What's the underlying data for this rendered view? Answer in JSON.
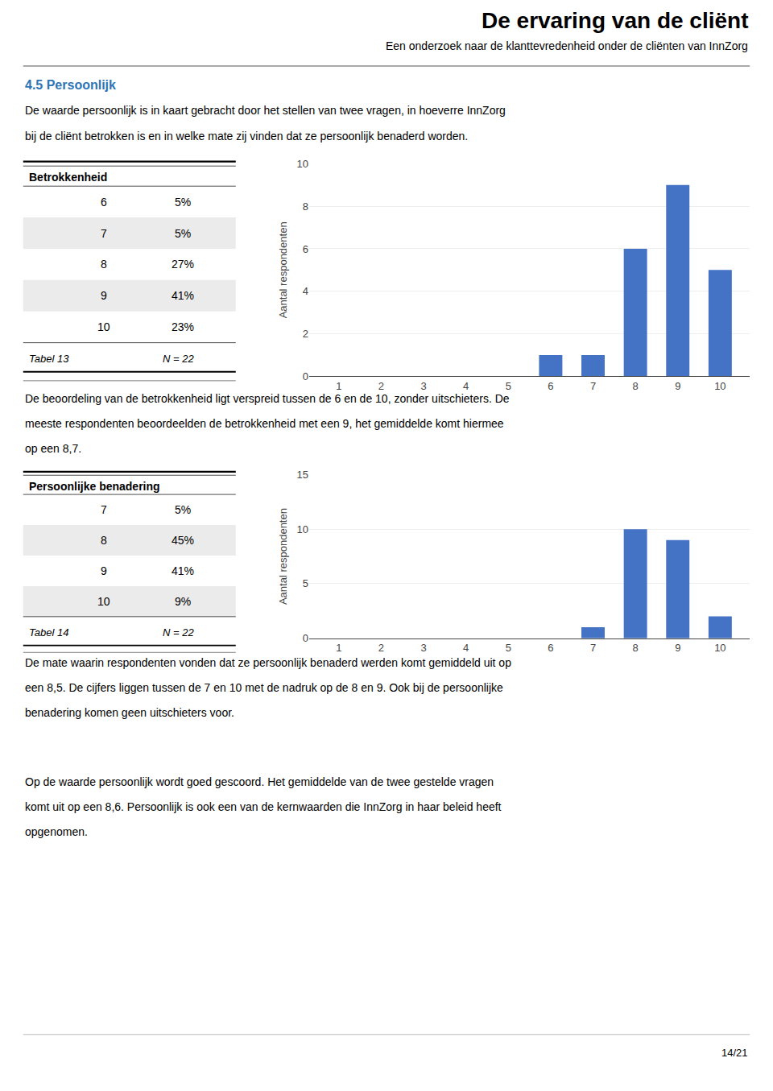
{
  "title": "De ervaring van de cliënt",
  "subtitle": "Een onderzoek naar de klanttevredenheid onder de cliënten van InnZorg",
  "section": {
    "text": "4.5 Persoonlijk",
    "color": "#2E74B5"
  },
  "paragraphs": [
    [
      "De waarde persoonlijk is in kaart gebracht door het stellen van twee vragen, in hoeverre InnZorg",
      "bij de cliënt betrokken is en in welke mate zij vinden dat ze persoonlijk benaderd worden."
    ],
    [
      "De beoordeling van de betrokkenheid ligt verspreid tussen de 6 en de 10, zonder uitschieters. De",
      "meeste respondenten beoordeelden de betrokkenheid met een 9, het gemiddelde komt hiermee",
      "op een 8,7."
    ],
    [
      "De mate waarin respondenten vonden dat ze persoonlijk benaderd werden komt gemiddeld uit op",
      "een 8,5. De cijfers liggen tussen de 7 en 10 met de nadruk op de 8 en 9. Ook bij de persoonlijke",
      "benadering komen geen uitschieters voor."
    ],
    [
      "Op de waarde persoonlijk wordt goed gescoord. Het gemiddelde van de twee gestelde vragen",
      "komt uit op een 8,6. Persoonlijk is ook een van de kernwaarden die InnZorg in haar beleid heeft",
      "opgenomen."
    ]
  ],
  "page_number": "14/21",
  "chart_data": [
    {
      "type": "bar",
      "title": "Betrokkenheid",
      "x": [
        1,
        2,
        3,
        4,
        5,
        6,
        7,
        8,
        9,
        10
      ],
      "values": [
        0,
        0,
        0,
        0,
        0,
        1,
        1,
        6,
        9,
        5
      ],
      "color": "#4472C4",
      "ylabel": "Aantal respondenten",
      "xlim": [
        0.3,
        10.7
      ],
      "xticks": [
        1,
        2,
        3,
        4,
        5,
        6,
        7,
        8,
        9,
        10
      ],
      "ylim": [
        0,
        10
      ],
      "yticks": [
        0,
        2,
        4,
        6,
        8,
        10
      ],
      "grid": true,
      "table": {
        "rows": [
          [
            "6",
            "5%"
          ],
          [
            "7",
            "5%"
          ],
          [
            "8",
            "27%"
          ],
          [
            "9",
            "41%"
          ],
          [
            "10",
            "23%"
          ]
        ],
        "caption": "Tabel 13",
        "note": "N = 22"
      }
    },
    {
      "type": "bar",
      "title": "Persoonlijke benadering",
      "x": [
        1,
        2,
        3,
        4,
        5,
        6,
        7,
        8,
        9,
        10
      ],
      "values": [
        0,
        0,
        0,
        0,
        0,
        0,
        1,
        10,
        9,
        2
      ],
      "color": "#4472C4",
      "ylabel": "Aantal respondenten",
      "xlim": [
        0.3,
        10.7
      ],
      "xticks": [
        1,
        2,
        3,
        4,
        5,
        6,
        7,
        8,
        9,
        10
      ],
      "ylim": [
        0,
        15
      ],
      "yticks": [
        0,
        5,
        10,
        15
      ],
      "grid": true,
      "table": {
        "rows": [
          [
            "7",
            "5%"
          ],
          [
            "8",
            "45%"
          ],
          [
            "9",
            "41%"
          ],
          [
            "10",
            "9%"
          ]
        ],
        "caption": "Tabel 14",
        "note": "N = 22"
      }
    }
  ]
}
